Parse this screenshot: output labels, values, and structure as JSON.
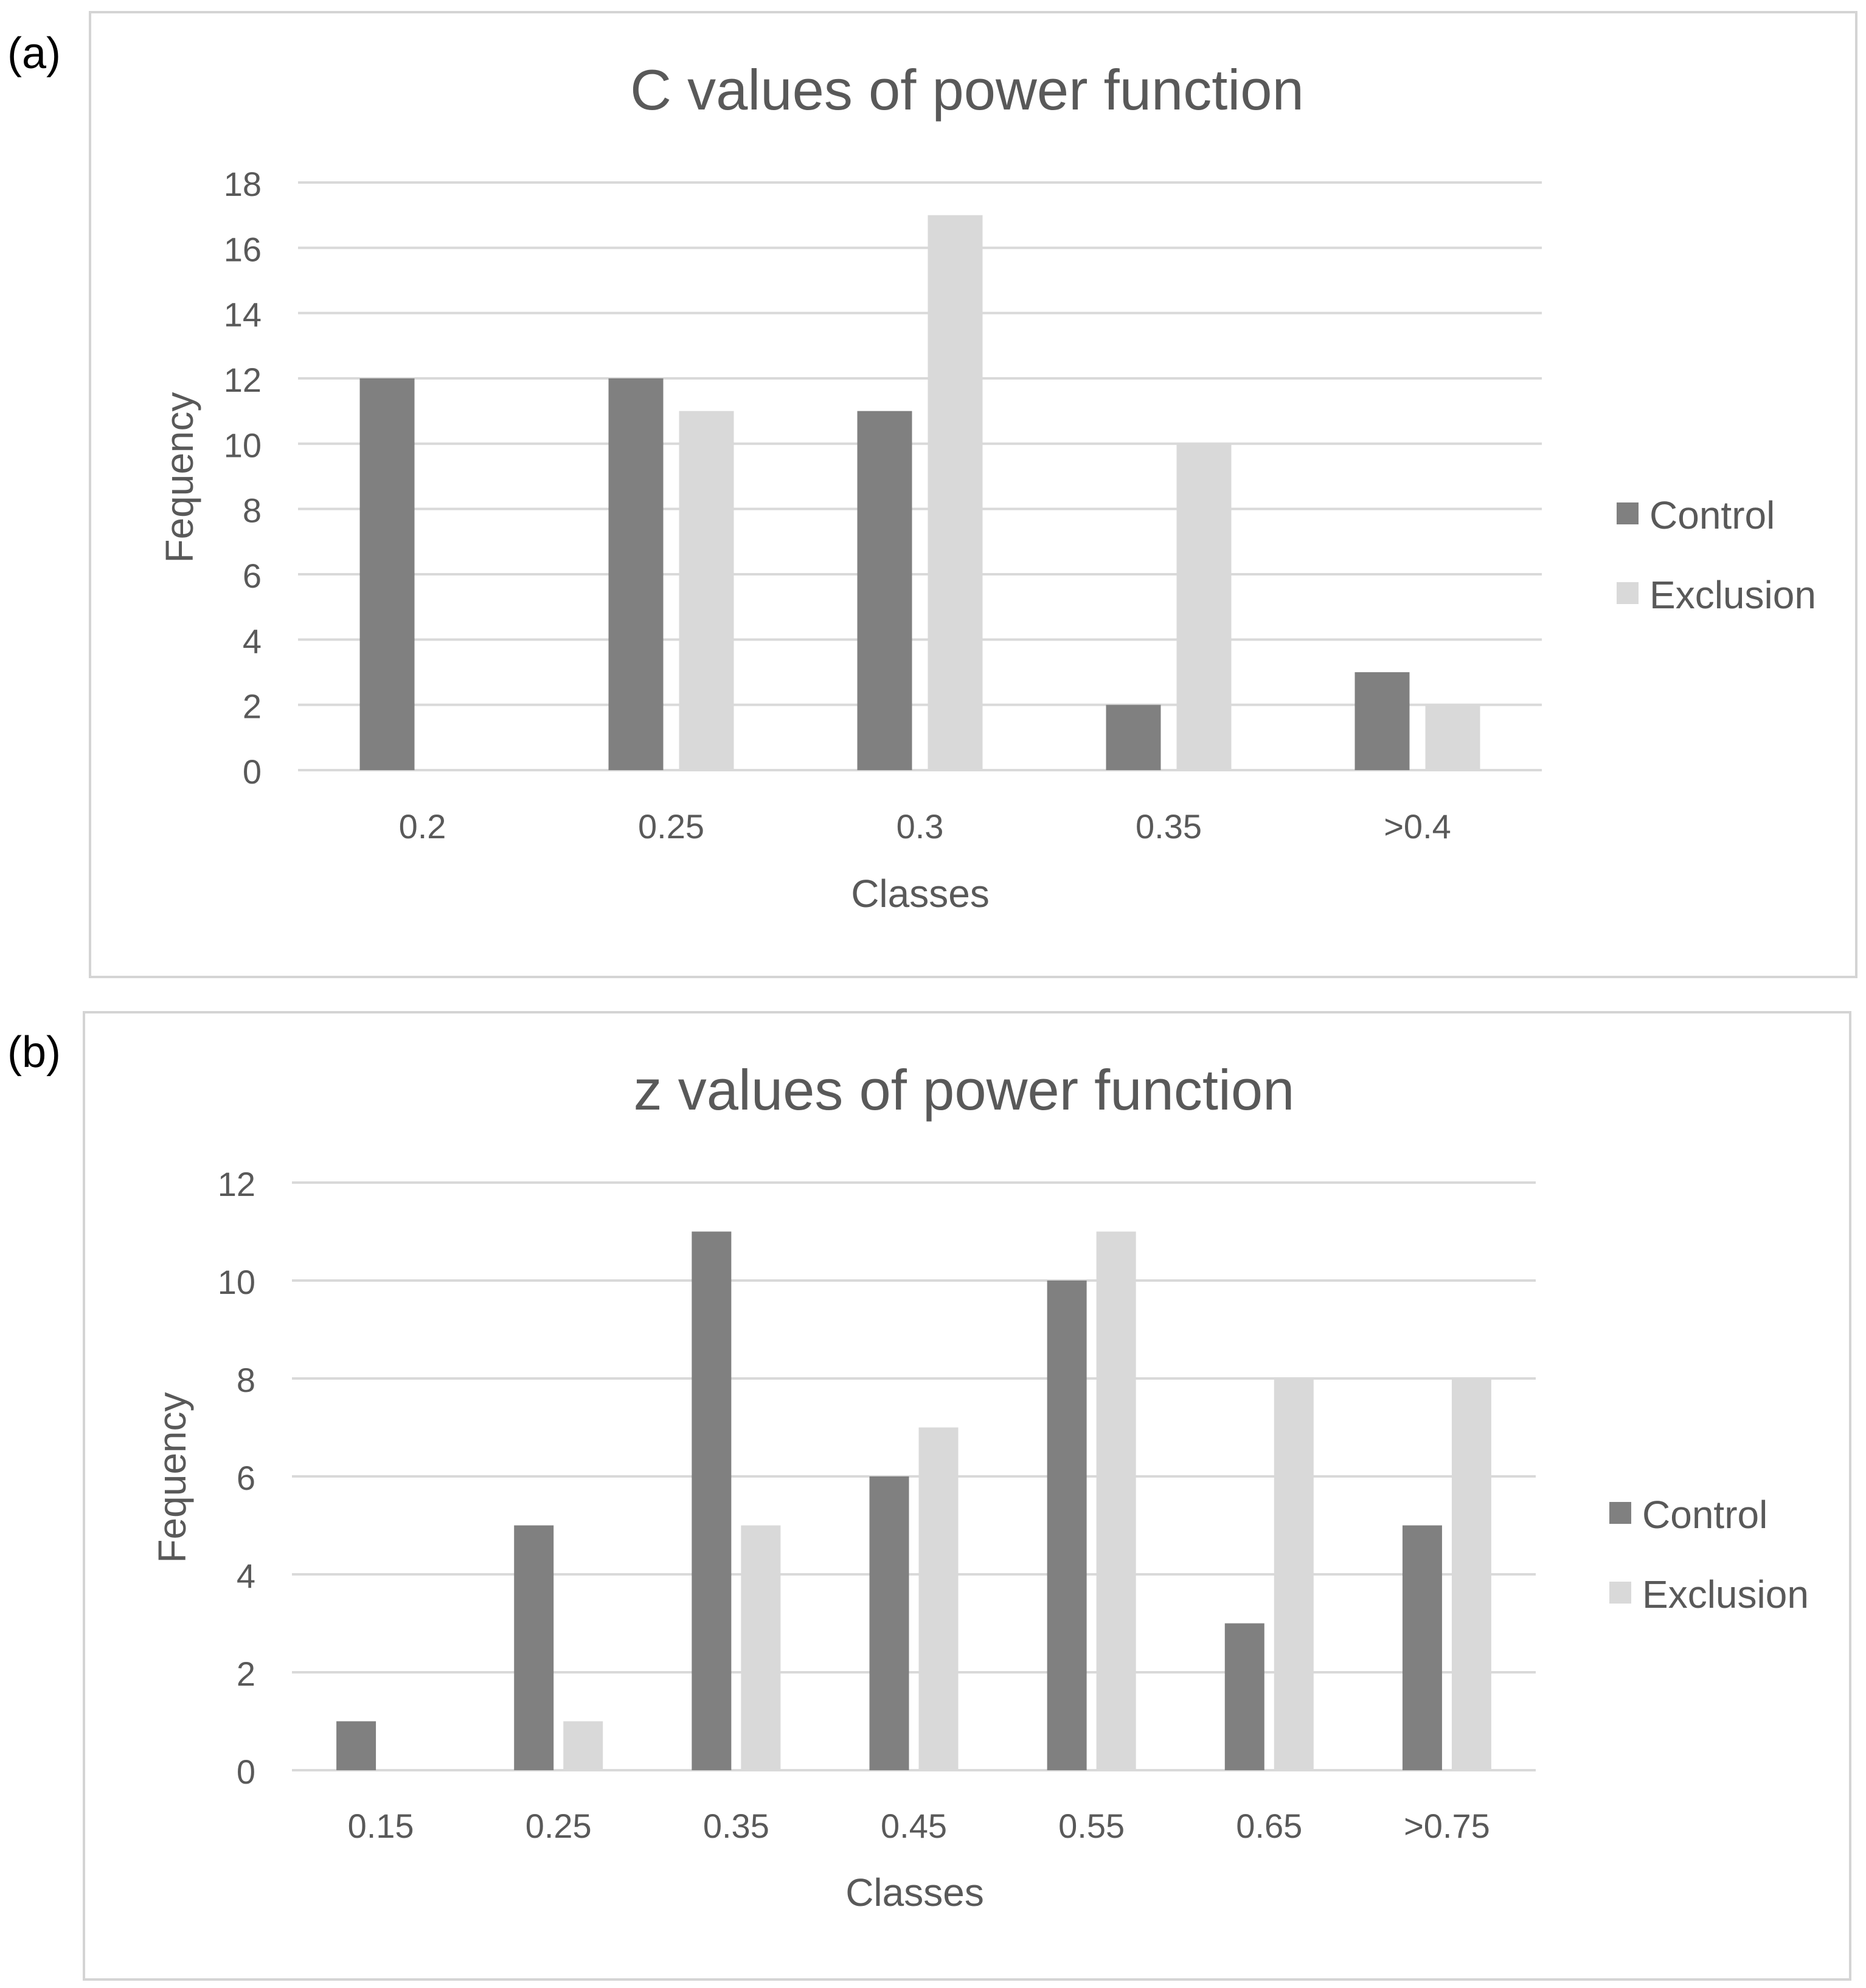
{
  "colors": {
    "control": "#808080",
    "exclusion": "#d9d9d9",
    "gridline": "#d9d9d9",
    "frame": "#d4d4d4",
    "title": "#595959",
    "axis_text": "#595959",
    "panel_label": "#000000"
  },
  "chart_data": [
    {
      "panel_label": "(a)",
      "type": "bar",
      "title": "C values of power function",
      "xlabel": "Classes",
      "ylabel": "Fequency",
      "categories": [
        "0.2",
        "0.25",
        "0.3",
        "0.35",
        ">0.4"
      ],
      "series": [
        {
          "name": "Control",
          "values": [
            12,
            12,
            11,
            2,
            3
          ]
        },
        {
          "name": "Exclusion",
          "values": [
            0,
            11,
            17,
            10,
            2
          ]
        }
      ],
      "ylim": [
        0,
        18
      ],
      "yticks": [
        0,
        2,
        4,
        6,
        8,
        10,
        12,
        14,
        16,
        18
      ],
      "grid": true,
      "legend": "right"
    },
    {
      "panel_label": "(b)",
      "type": "bar",
      "title": "z values of power function",
      "xlabel": "Classes",
      "ylabel": "Fequency",
      "categories": [
        "0.15",
        "0.25",
        "0.35",
        "0.45",
        "0.55",
        "0.65",
        ">0.75"
      ],
      "series": [
        {
          "name": "Control",
          "values": [
            1,
            5,
            11,
            6,
            10,
            3,
            5
          ]
        },
        {
          "name": "Exclusion",
          "values": [
            0,
            1,
            5,
            7,
            11,
            8,
            8
          ]
        }
      ],
      "ylim": [
        0,
        12
      ],
      "yticks": [
        0,
        2,
        4,
        6,
        8,
        10,
        12
      ],
      "grid": true,
      "legend": "right"
    }
  ]
}
